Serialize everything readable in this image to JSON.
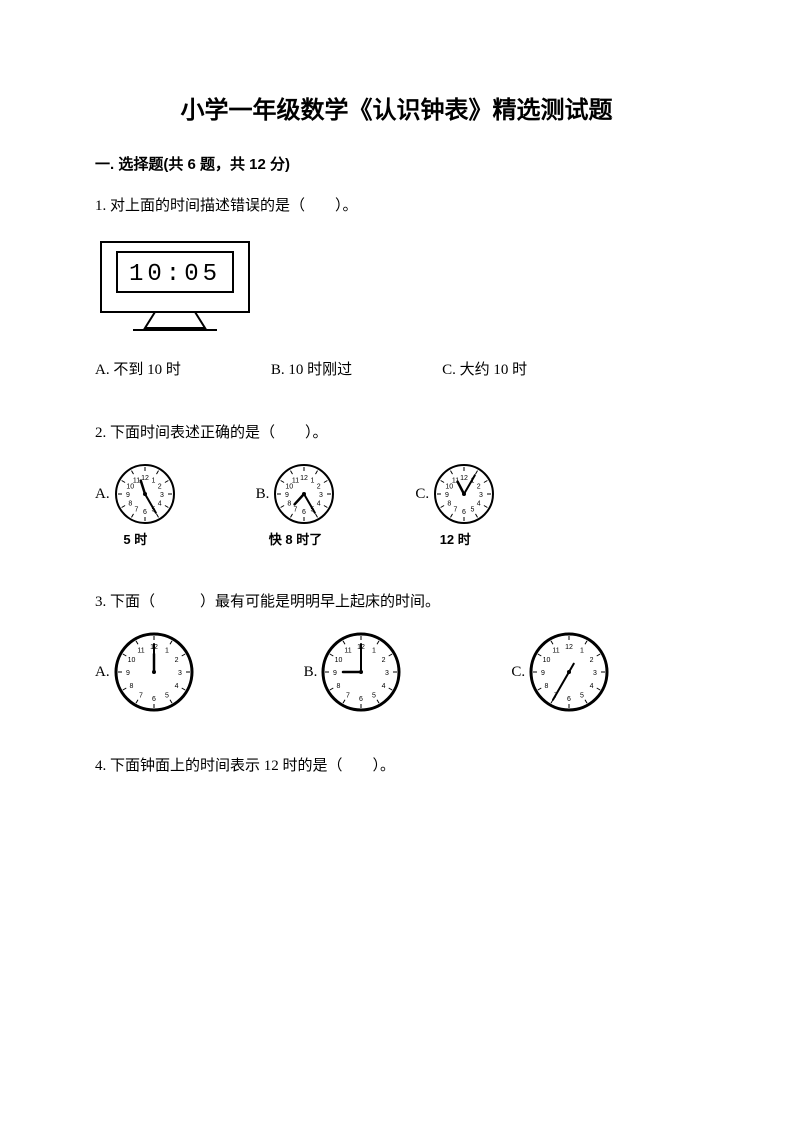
{
  "title": "小学一年级数学《认识钟表》精选测试题",
  "section1_head": "一. 选择题(共 6 题，共 12 分)",
  "q1": {
    "stem": "1. 对上面的时间描述错误的是（　　）。",
    "digital_time": "10:05",
    "opts": {
      "A": "A. 不到 10 时",
      "B": "B. 10 时刚过",
      "C": "C. 大约 10 时"
    },
    "digital_clock_style": {
      "width": 150,
      "height": 90,
      "stroke": "#000000",
      "stroke_width": 2,
      "font": "DS-Digital, monospace",
      "fontsize": 22
    }
  },
  "q2": {
    "stem": "2. 下面时间表述正确的是（　　）。",
    "opts": {
      "A": {
        "letter": "A.",
        "caption": "5 时",
        "hour": 11,
        "minute": 25,
        "size": 62
      },
      "B": {
        "letter": "B.",
        "caption": "快 8 时了",
        "hour": 7,
        "minute": 25,
        "size": 62
      },
      "C": {
        "letter": "C.",
        "caption": "12 时",
        "hour": 11,
        "minute": 5,
        "size": 62
      }
    },
    "clock_style": {
      "face": "#ffffff",
      "stroke": "#000000",
      "stroke_width": 2,
      "num_fontsize": 7
    }
  },
  "q3": {
    "stem": "3. 下面（　　　）最有可能是明明早上起床的时间。",
    "opts": {
      "A": {
        "letter": "A.",
        "hour": 12,
        "minute": 0,
        "size": 80
      },
      "B": {
        "letter": "B.",
        "hour": 9,
        "minute": 0,
        "size": 80
      },
      "C": {
        "letter": "C.",
        "hour": 7,
        "minute": 35,
        "size": 80,
        "single_hand": true
      }
    },
    "clock_style": {
      "face": "#ffffff",
      "stroke": "#000000",
      "stroke_width": 3,
      "num_fontsize": 7
    }
  },
  "q4": {
    "stem": "4. 下面钟面上的时间表示 12 时的是（　　）。"
  },
  "colors": {
    "text": "#000000",
    "bg": "#ffffff"
  }
}
